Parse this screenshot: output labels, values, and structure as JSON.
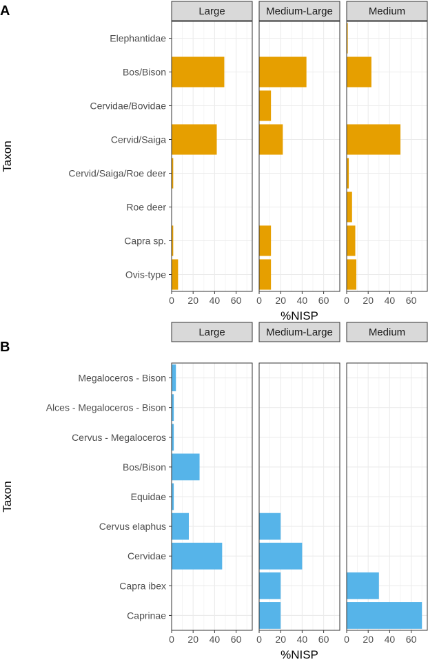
{
  "chart_data": [
    {
      "type": "bar",
      "orientation": "horizontal",
      "panel_label": "A",
      "xlabel": "%NISP",
      "ylabel": "Taxon",
      "xlim": [
        0,
        75
      ],
      "xticks": [
        0,
        20,
        40,
        60
      ],
      "bar_color": "#E69F00",
      "categories": [
        "Elephantidae",
        "Bos/Bison",
        "Cervidae/Bovidae",
        "Cervid/Saiga",
        "Cervid/Saiga/Roe deer",
        "Roe deer",
        "Capra sp.",
        "Ovis-type"
      ],
      "series": [
        {
          "name": "Large",
          "values": [
            0,
            49,
            0,
            42,
            1.5,
            0,
            1.5,
            6
          ]
        },
        {
          "name": "Medium-Large",
          "values": [
            0,
            44,
            11,
            22,
            0,
            0,
            11,
            11
          ]
        },
        {
          "name": "Medium",
          "values": [
            1,
            23,
            0,
            50,
            2,
            5,
            8,
            9
          ]
        }
      ]
    },
    {
      "type": "bar",
      "orientation": "horizontal",
      "panel_label": "B",
      "xlabel": "%NISP",
      "ylabel": "Taxon",
      "xlim": [
        0,
        75
      ],
      "xticks": [
        0,
        20,
        40,
        60
      ],
      "bar_color": "#56B4E9",
      "categories": [
        "Megaloceros - Bison",
        "Alces - Megaloceros - Bison",
        "Cervus - Megaloceros",
        "Bos/Bison",
        "Equidae",
        "Cervus elaphus",
        "Cervidae",
        "Capra ibex",
        "Caprinae"
      ],
      "series": [
        {
          "name": "Large",
          "values": [
            4,
            2,
            2,
            26,
            2,
            16,
            47,
            0,
            0
          ]
        },
        {
          "name": "Medium-Large",
          "values": [
            0,
            0,
            0,
            0,
            0,
            20,
            40,
            20,
            20
          ]
        },
        {
          "name": "Medium",
          "values": [
            0,
            0,
            0,
            0,
            0,
            0,
            0,
            30,
            70
          ]
        }
      ]
    }
  ]
}
